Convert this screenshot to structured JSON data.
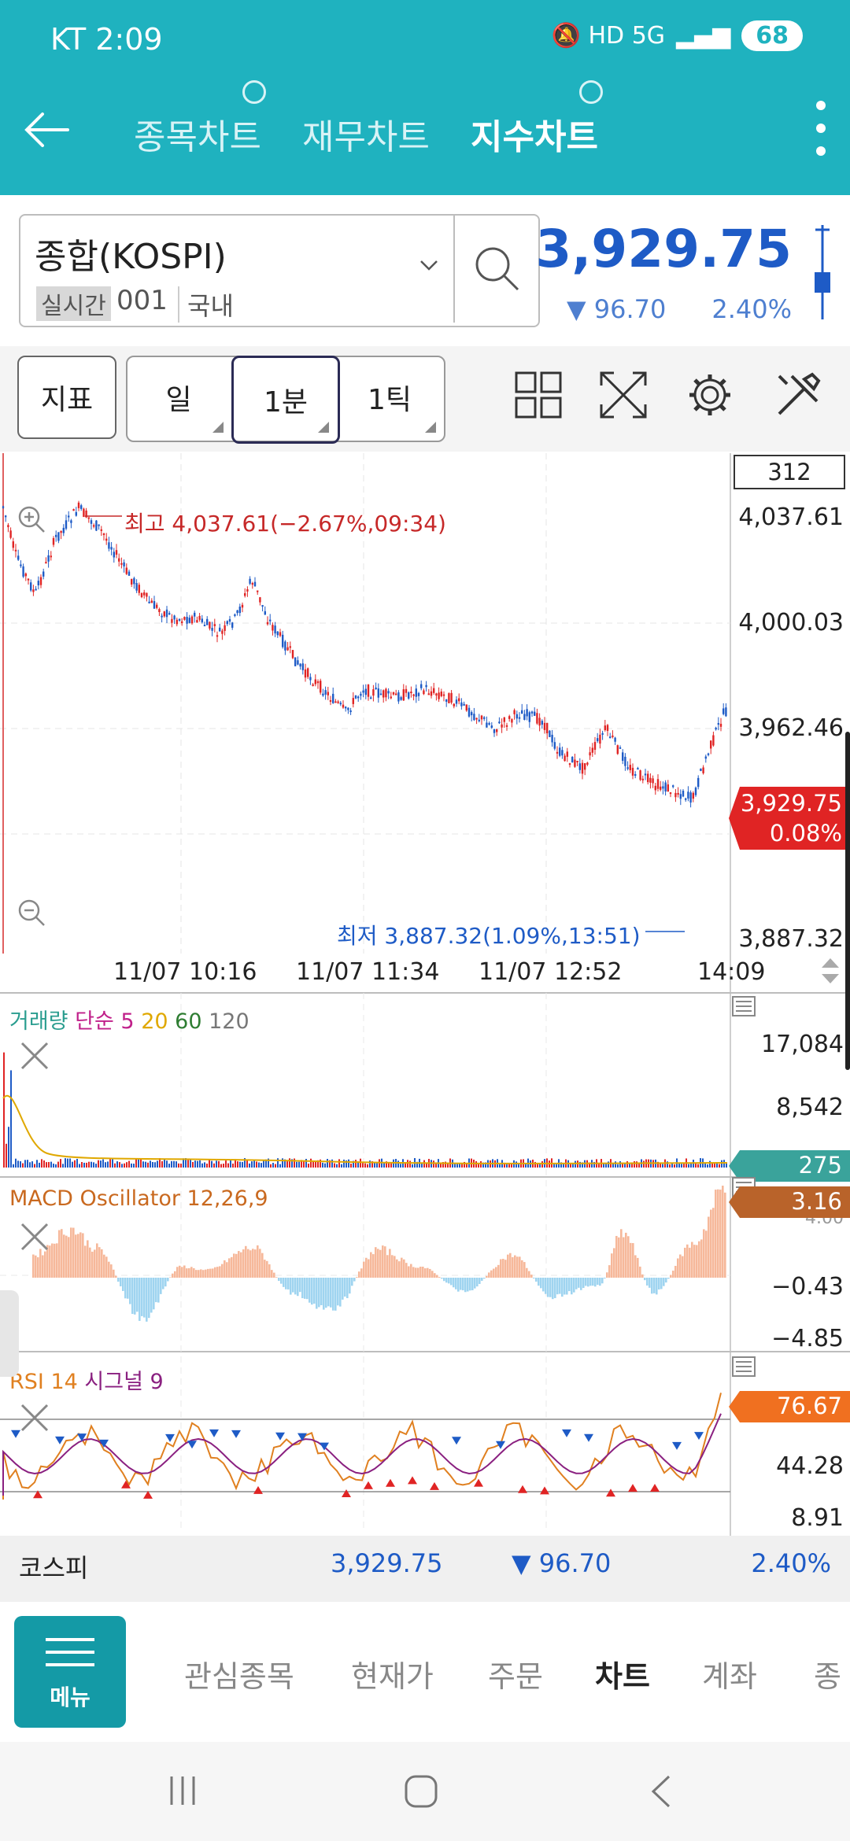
{
  "status": {
    "carrier_time": "KT 2:09",
    "icons": "🔕 HD 5G",
    "battery": "68"
  },
  "header": {
    "tabs": [
      {
        "label": "종목차트",
        "active": false
      },
      {
        "label": "재무차트",
        "active": false
      },
      {
        "label": "지수차트",
        "active": true
      }
    ]
  },
  "quote": {
    "name": "종합(KOSPI)",
    "realtime": "실시간",
    "code": "001",
    "market": "국내",
    "price": "3,929.75",
    "change": "▼ 96.70",
    "change_pct": "2.40%"
  },
  "toolbar": {
    "indicator": "지표",
    "period_day": "일",
    "period_min": "1분",
    "period_tick": "1틱"
  },
  "main_chart": {
    "count_box": "312",
    "price_axis": [
      "4,037.61",
      "4,000.03",
      "3,962.46",
      "3,887.32"
    ],
    "high_label": "최고 4,037.61(−2.67%,09:34)",
    "low_label": "최저 3,887.32(1.09%,13:51)",
    "current_tag_price": "3,929.75",
    "current_tag_pct": "0.08%",
    "time_axis": [
      "11/07 10:16",
      "11/07 11:34",
      "11/07 12:52",
      "14:09"
    ]
  },
  "volume_panel": {
    "title_main": "거래량",
    "title_type": "단순",
    "ma": [
      "5",
      "20",
      "60",
      "120"
    ],
    "axis": [
      "17,084",
      "8,542"
    ],
    "tag": "275"
  },
  "macd_panel": {
    "title": "MACD Oscillator 12,26,9",
    "axis_top": "4.00",
    "axis": [
      "−0.43",
      "−4.85"
    ],
    "tag": "3.16"
  },
  "rsi_panel": {
    "title_rsi": "RSI 14",
    "title_signal": "시그널 9",
    "axis": [
      "44.28",
      "8.91"
    ],
    "tag": "76.67"
  },
  "summary": {
    "name": "코스피",
    "price": "3,929.75",
    "change": "▼ 96.70",
    "change_pct": "2.40%"
  },
  "bottom_nav": {
    "menu": "메뉴",
    "tabs": [
      {
        "label": "관심종목",
        "active": false
      },
      {
        "label": "현재가",
        "active": false
      },
      {
        "label": "주문",
        "active": false
      },
      {
        "label": "차트",
        "active": true
      },
      {
        "label": "계좌",
        "active": false
      },
      {
        "label": "종",
        "active": false
      }
    ]
  },
  "colors": {
    "accent": "#1fb2bf",
    "down": "#1e5bc6",
    "up": "#e02424",
    "macd_pos": "#f6b89a",
    "macd_neg": "#9fd4f0"
  }
}
